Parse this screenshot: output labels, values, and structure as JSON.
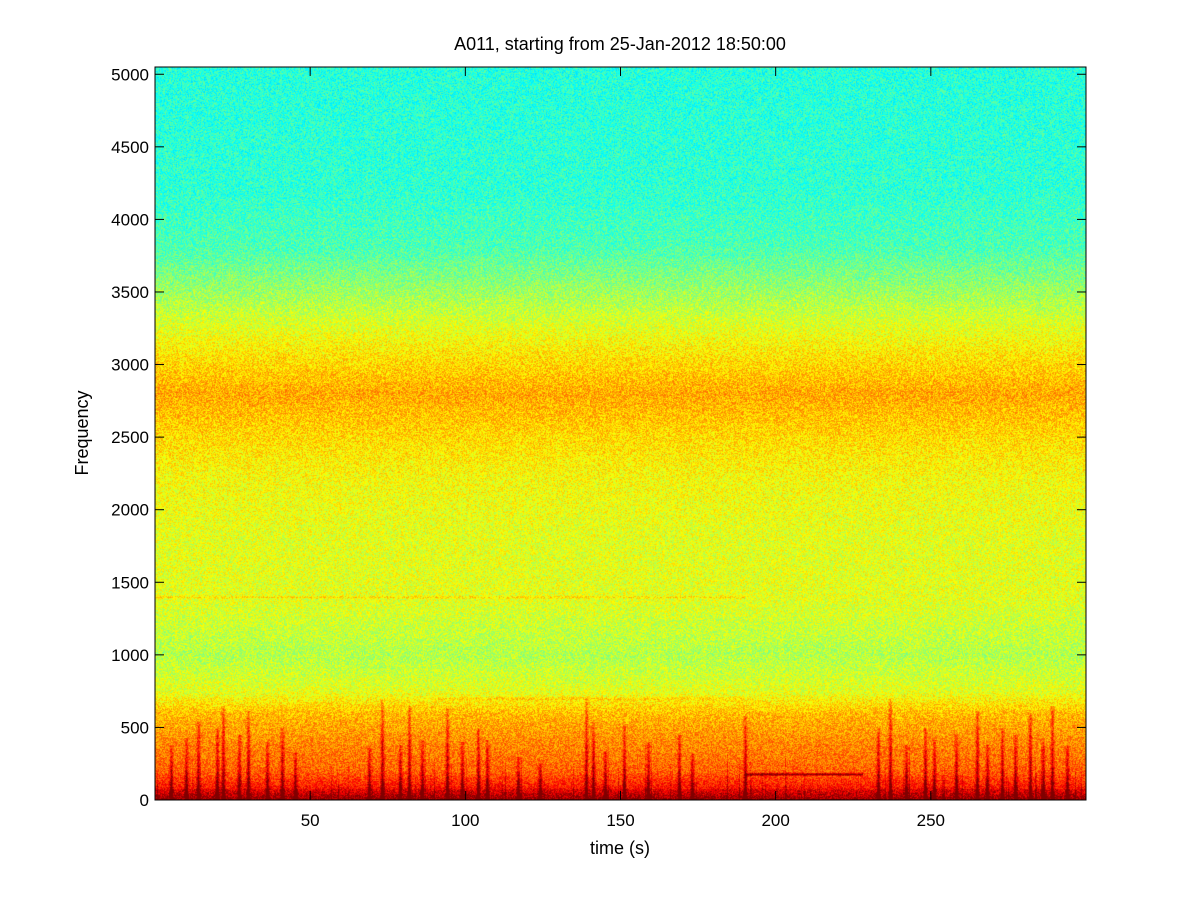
{
  "chart_data": {
    "type": "heatmap",
    "subtype": "spectrogram",
    "title": "A011, starting from 25-Jan-2012 18:50:00",
    "xlabel": "time (s)",
    "ylabel": "Frequency",
    "xlim": [
      0,
      300
    ],
    "ylim": [
      0,
      5050
    ],
    "xticks": [
      50,
      100,
      150,
      200,
      250
    ],
    "xtick_labels": [
      "50",
      "100",
      "150",
      "200",
      "250"
    ],
    "yticks": [
      0,
      500,
      1000,
      1500,
      2000,
      2500,
      3000,
      3500,
      4000,
      4500,
      5000
    ],
    "ytick_labels": [
      "0",
      "500",
      "1000",
      "1500",
      "2000",
      "2500",
      "3000",
      "3500",
      "4000",
      "4500",
      "5000"
    ],
    "grid": false,
    "colormap": "jet",
    "colors": {
      "low_intensity": "#3ef0b4",
      "mid_intensity": "#a8f24a",
      "high_intensity": "#f2f21c",
      "peak_intensity": "#d81a10"
    },
    "intensity_profile_by_frequency": [
      {
        "frequency": 0,
        "level": 0.97
      },
      {
        "frequency": 60,
        "level": 0.88
      },
      {
        "frequency": 200,
        "level": 0.78
      },
      {
        "frequency": 400,
        "level": 0.74
      },
      {
        "frequency": 600,
        "level": 0.69
      },
      {
        "frequency": 750,
        "level": 0.6
      },
      {
        "frequency": 1000,
        "level": 0.55
      },
      {
        "frequency": 1400,
        "level": 0.6
      },
      {
        "frequency": 1800,
        "level": 0.6
      },
      {
        "frequency": 2200,
        "level": 0.62
      },
      {
        "frequency": 2500,
        "level": 0.66
      },
      {
        "frequency": 2800,
        "level": 0.71
      },
      {
        "frequency": 3100,
        "level": 0.64
      },
      {
        "frequency": 3500,
        "level": 0.53
      },
      {
        "frequency": 3800,
        "level": 0.45
      },
      {
        "frequency": 4200,
        "level": 0.42
      },
      {
        "frequency": 5050,
        "level": 0.41
      }
    ],
    "tonal_lines": [
      {
        "frequency": 1400,
        "t_start": 0,
        "t_end": 190,
        "strength": 0.06
      },
      {
        "frequency": 700,
        "t_start": 90,
        "t_end": 190,
        "strength": 0.05
      },
      {
        "frequency": 180,
        "t_start": 190,
        "t_end": 228,
        "strength": 0.22
      }
    ],
    "transients": [
      {
        "t": 5,
        "max_freq": 380
      },
      {
        "t": 10,
        "max_freq": 430
      },
      {
        "t": 14,
        "max_freq": 550
      },
      {
        "t": 20,
        "max_freq": 500
      },
      {
        "t": 22,
        "max_freq": 650
      },
      {
        "t": 27,
        "max_freq": 450
      },
      {
        "t": 30,
        "max_freq": 620
      },
      {
        "t": 36,
        "max_freq": 400
      },
      {
        "t": 41,
        "max_freq": 500
      },
      {
        "t": 45,
        "max_freq": 330
      },
      {
        "t": 69,
        "max_freq": 360
      },
      {
        "t": 73,
        "max_freq": 700
      },
      {
        "t": 79,
        "max_freq": 380
      },
      {
        "t": 82,
        "max_freq": 650
      },
      {
        "t": 86,
        "max_freq": 420
      },
      {
        "t": 94,
        "max_freq": 640
      },
      {
        "t": 99,
        "max_freq": 400
      },
      {
        "t": 104,
        "max_freq": 500
      },
      {
        "t": 107,
        "max_freq": 420
      },
      {
        "t": 117,
        "max_freq": 300
      },
      {
        "t": 124,
        "max_freq": 260
      },
      {
        "t": 139,
        "max_freq": 700
      },
      {
        "t": 141,
        "max_freq": 550
      },
      {
        "t": 145,
        "max_freq": 340
      },
      {
        "t": 151,
        "max_freq": 520
      },
      {
        "t": 159,
        "max_freq": 400
      },
      {
        "t": 169,
        "max_freq": 450
      },
      {
        "t": 173,
        "max_freq": 330
      },
      {
        "t": 190,
        "max_freq": 580
      },
      {
        "t": 233,
        "max_freq": 500
      },
      {
        "t": 237,
        "max_freq": 700
      },
      {
        "t": 242,
        "max_freq": 380
      },
      {
        "t": 248,
        "max_freq": 500
      },
      {
        "t": 251,
        "max_freq": 420
      },
      {
        "t": 258,
        "max_freq": 460
      },
      {
        "t": 265,
        "max_freq": 620
      },
      {
        "t": 268,
        "max_freq": 380
      },
      {
        "t": 273,
        "max_freq": 500
      },
      {
        "t": 277,
        "max_freq": 450
      },
      {
        "t": 282,
        "max_freq": 600
      },
      {
        "t": 286,
        "max_freq": 400
      },
      {
        "t": 289,
        "max_freq": 650
      },
      {
        "t": 294,
        "max_freq": 380
      }
    ]
  }
}
